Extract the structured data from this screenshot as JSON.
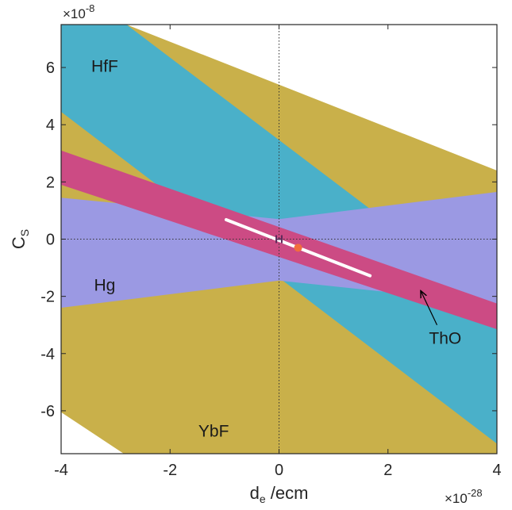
{
  "chart_data": {
    "type": "area",
    "xlabel": {
      "main": "d",
      "sub": "e",
      "rest": " /ecm"
    },
    "ylabel": {
      "main": "C",
      "sub": "S"
    },
    "x_exponent": {
      "base": "×10",
      "power": "-28"
    },
    "y_exponent": {
      "base": "×10",
      "power": "-8"
    },
    "xlim": [
      -4,
      4
    ],
    "ylim": [
      -7.5,
      7.5
    ],
    "x_ticks": [
      -4,
      -2,
      0,
      2,
      4
    ],
    "y_ticks": [
      -6,
      -4,
      -2,
      0,
      2,
      4,
      6
    ],
    "x_tick_labels": [
      "-4",
      "-2",
      "0",
      "2",
      "4"
    ],
    "y_tick_labels": [
      "-6",
      "-4",
      "-2",
      "0",
      "2",
      "4",
      "6"
    ],
    "grid": false,
    "zero_lines": true,
    "bands": [
      {
        "name": "YbF",
        "color": "#c9b04a",
        "polygon": [
          [
            -4,
            -6.05
          ],
          [
            -2.85,
            -7.5
          ],
          [
            4,
            -7.5
          ],
          [
            4,
            2.4
          ],
          [
            -2.8,
            7.5
          ],
          [
            -4,
            7.5
          ]
        ]
      },
      {
        "name": "HfF",
        "color": "#4ab0c9",
        "polygon": [
          [
            -4,
            7.5
          ],
          [
            -2.8,
            7.5
          ],
          [
            4,
            -2.3
          ],
          [
            4,
            -7.15
          ],
          [
            -4,
            4.45
          ]
        ]
      },
      {
        "name": "Hg",
        "color": "#9b99e3",
        "polygon": [
          [
            -4,
            1.45
          ],
          [
            0,
            0.7
          ],
          [
            4,
            1.65
          ],
          [
            4,
            -2.25
          ],
          [
            0,
            -1.45
          ],
          [
            -4,
            -2.4
          ]
        ]
      },
      {
        "name": "ThO",
        "color": "#cc4b84",
        "polygon": [
          [
            -4,
            3.1
          ],
          [
            4,
            -2.25
          ],
          [
            4,
            -3.15
          ],
          [
            -4,
            1.9
          ]
        ]
      }
    ],
    "band_labels": [
      {
        "text": "HfF",
        "x": -3.2,
        "y": 6.0
      },
      {
        "text": "Hg",
        "x": -3.2,
        "y": -1.65
      },
      {
        "text": "YbF",
        "x": -1.2,
        "y": -6.75
      },
      {
        "text": "ThO",
        "x": 3.05,
        "y": -3.5
      }
    ],
    "highlight_segment": {
      "x": [
        -0.97,
        1.67
      ],
      "y": [
        0.68,
        -1.28
      ],
      "color": "#ffffff"
    },
    "points": [
      {
        "x": 0.35,
        "y": -0.3,
        "color": "#f26d3d"
      }
    ],
    "error_bar": {
      "x": [
        -0.05,
        0.05
      ],
      "y": 0.0,
      "color": "#5a2a5a"
    },
    "annotation": {
      "text": "ThO",
      "arrow_from": [
        2.9,
        -3.0
      ],
      "arrow_to": [
        2.6,
        -1.8
      ]
    }
  }
}
